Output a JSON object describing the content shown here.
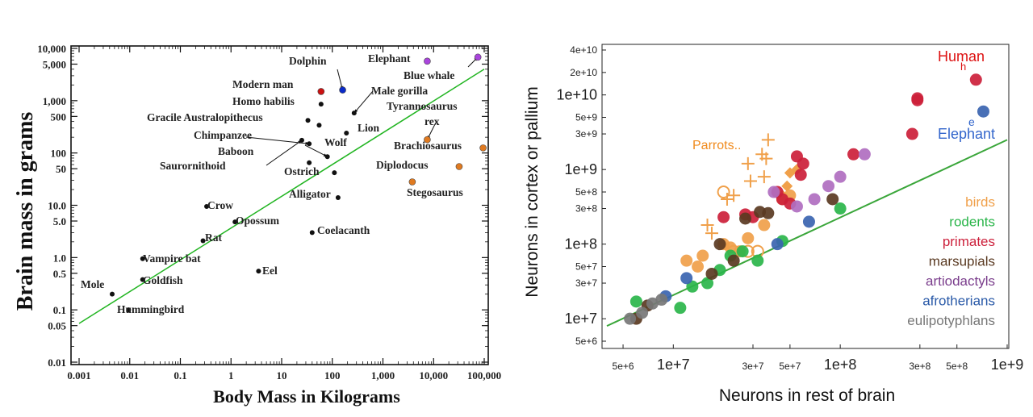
{
  "chart_data": [
    {
      "type": "scatter",
      "xlabel": "Body Mass in Kilograms",
      "ylabel": "Brain mass in grams",
      "x_scale": "log",
      "y_scale": "log",
      "xlim": [
        0.001,
        100000
      ],
      "ylim": [
        0.01,
        10000
      ],
      "x_ticks": [
        "0.001",
        "0.01",
        "0.1",
        "1",
        "10",
        "100",
        "1,000",
        "10,000",
        "100,000"
      ],
      "y_ticks": [
        "0.01",
        "0.05",
        "0.1",
        "0.5",
        "1.0",
        "5.0",
        "10.0",
        "50",
        "100",
        "500",
        "1,000",
        "5,000",
        "10,000"
      ],
      "grid": false,
      "trendline": {
        "x": [
          0.001,
          100000
        ],
        "y": [
          0.055,
          4000
        ],
        "color": "#22b522"
      },
      "points": [
        {
          "label": "Mole",
          "x": 0.0045,
          "y": 0.2,
          "color": "#111111"
        },
        {
          "label": "Hummingbird",
          "x": 0.0095,
          "y": 0.1,
          "color": "#111111"
        },
        {
          "label": "Goldfish",
          "x": 0.018,
          "y": 0.38,
          "color": "#111111"
        },
        {
          "label": "Vampire bat",
          "x": 0.018,
          "y": 0.95,
          "color": "#111111"
        },
        {
          "label": "Rat",
          "x": 0.28,
          "y": 2.1,
          "color": "#111111"
        },
        {
          "label": "Crow",
          "x": 0.33,
          "y": 9.5,
          "color": "#111111"
        },
        {
          "label": "Opossum",
          "x": 1.2,
          "y": 4.8,
          "color": "#111111"
        },
        {
          "label": "Eel",
          "x": 3.5,
          "y": 0.55,
          "color": "#111111"
        },
        {
          "label": "Coelacanth",
          "x": 40,
          "y": 3.0,
          "color": "#111111"
        },
        {
          "label": "Alligator",
          "x": 130,
          "y": 14,
          "color": "#111111"
        },
        {
          "label": "Ostrich",
          "x": 110,
          "y": 42,
          "color": "#111111"
        },
        {
          "label": "Saurornithoid",
          "x": 35,
          "y": 65,
          "color": "#111111"
        },
        {
          "label": "Wolf",
          "x": 80,
          "y": 85,
          "color": "#111111"
        },
        {
          "label": "Baboon",
          "x": 35,
          "y": 150,
          "color": "#111111"
        },
        {
          "label": "Chimpanzee",
          "x": 25,
          "y": 175,
          "color": "#111111"
        },
        {
          "label": "Gracile Australopithecus",
          "x": 33,
          "y": 420,
          "color": "#111111"
        },
        {
          "label": "Homo habilis",
          "x": 55,
          "y": 340,
          "color": "#111111"
        },
        {
          "label": "Homo habilis",
          "x": 60,
          "y": 860,
          "color": "#111111"
        },
        {
          "label": "Modern man",
          "x": 60,
          "y": 1500,
          "color": "#cc1111"
        },
        {
          "label": "Dolphin",
          "x": 160,
          "y": 1600,
          "color": "#0a2ac8"
        },
        {
          "label": "Male gorilla",
          "x": 270,
          "y": 580,
          "color": "#111111"
        },
        {
          "label": "Lion",
          "x": 190,
          "y": 240,
          "color": "#111111"
        },
        {
          "label": "Tyrannosaurus rex",
          "x": 7500,
          "y": 180,
          "color": "#e07a20"
        },
        {
          "label": "Brachiosaurus",
          "x": 95000,
          "y": 125,
          "color": "#e07a20"
        },
        {
          "label": "Diplodocus",
          "x": 32000,
          "y": 55,
          "color": "#e07a20"
        },
        {
          "label": "Stegosaurus",
          "x": 3800,
          "y": 28,
          "color": "#e07a20"
        },
        {
          "label": "Elephant",
          "x": 7500,
          "y": 5700,
          "color": "#aa44dd"
        },
        {
          "label": "Blue whale",
          "x": 75000,
          "y": 6800,
          "color": "#aa44dd"
        }
      ],
      "annotations": [
        "Mole",
        "Hummingbird",
        "Goldfish",
        "Vampire bat",
        "Rat",
        "Crow",
        "Opossum",
        "Eel",
        "Coelacanth",
        "Alligator",
        "Ostrich",
        "Saurornithoid",
        "Wolf",
        "Baboon",
        "Chimpanzee",
        "Gracile Australopithecus",
        "Homo habilis",
        "Modern man",
        "Dolphin",
        "Male gorilla",
        "Lion",
        "Tyrannosaurus",
        "rex",
        "Brachiosaurus",
        "Diplodocus",
        "Stegosaurus",
        "Elephant",
        "Blue whale"
      ]
    },
    {
      "type": "scatter",
      "xlabel": "Neurons in rest of brain",
      "ylabel": "Neurons in cortex or pallium",
      "x_scale": "log",
      "y_scale": "log",
      "xlim": [
        4000000,
        1000000000
      ],
      "ylim": [
        5000000,
        40000000000
      ],
      "x_ticks": [
        {
          "v": 5000000,
          "label": "5e+6",
          "major": false
        },
        {
          "v": 10000000,
          "label": "1e+7",
          "major": true
        },
        {
          "v": 30000000,
          "label": "3e+7",
          "major": false
        },
        {
          "v": 50000000,
          "label": "5e+7",
          "major": false
        },
        {
          "v": 100000000,
          "label": "1e+8",
          "major": true
        },
        {
          "v": 300000000,
          "label": "3e+8",
          "major": false
        },
        {
          "v": 500000000,
          "label": "5e+8",
          "major": false
        },
        {
          "v": 1000000000,
          "label": "1e+9",
          "major": true
        }
      ],
      "y_ticks": [
        {
          "v": 5000000,
          "label": "5e+6",
          "major": false
        },
        {
          "v": 10000000,
          "label": "1e+7",
          "major": true
        },
        {
          "v": 30000000,
          "label": "3e+7",
          "major": false
        },
        {
          "v": 50000000,
          "label": "5e+7",
          "major": false
        },
        {
          "v": 100000000,
          "label": "1e+8",
          "major": true
        },
        {
          "v": 300000000,
          "label": "3e+8",
          "major": false
        },
        {
          "v": 500000000,
          "label": "5e+8",
          "major": false
        },
        {
          "v": 1000000000,
          "label": "1e+9",
          "major": true
        },
        {
          "v": 3000000000,
          "label": "3e+9",
          "major": false
        },
        {
          "v": 5000000000,
          "label": "5e+9",
          "major": false
        },
        {
          "v": 10000000000,
          "label": "1e+10",
          "major": true
        },
        {
          "v": 20000000000,
          "label": "2e+10",
          "major": false
        },
        {
          "v": 40000000000,
          "label": "4e+10",
          "major": false
        }
      ],
      "grid": false,
      "trendline": {
        "x": [
          4000000,
          1000000000
        ],
        "y": [
          8000000,
          2500000000
        ],
        "color": "#3aa63a"
      },
      "annotations": [
        {
          "text": "Human",
          "color": "#dd1111"
        },
        {
          "text": "h",
          "color": "#dd1111"
        },
        {
          "text": "e",
          "color": "#3366cc"
        },
        {
          "text": "Elephant",
          "color": "#3366cc"
        },
        {
          "text": "Parrots..",
          "color": "#f08a1c"
        }
      ],
      "legend": {
        "position": "right",
        "entries": [
          {
            "label": "birds",
            "color": "#f0a04a"
          },
          {
            "label": "rodents",
            "color": "#2ab54a"
          },
          {
            "label": "primates",
            "color": "#cc1f3a"
          },
          {
            "label": "marsupials",
            "color": "#5a3a22"
          },
          {
            "label": "artiodactyls",
            "color": "#7a3d8c"
          },
          {
            "label": "afrotherians",
            "color": "#2a5aa8"
          },
          {
            "label": "eulipotyphlans",
            "color": "#777777"
          }
        ]
      },
      "series": [
        {
          "name": "birds",
          "color": "#f0a04a",
          "marker": "circle",
          "points": [
            [
              12000000,
              60000000
            ],
            [
              15000000,
              70000000
            ],
            [
              20000000,
              100000000
            ],
            [
              22000000,
              90000000
            ],
            [
              25000000,
              80000000
            ],
            [
              28000000,
              120000000
            ],
            [
              35000000,
              180000000
            ],
            [
              45000000,
              400000000
            ],
            [
              50000000,
              450000000
            ],
            [
              14000000,
              50000000
            ]
          ]
        },
        {
          "name": "birds",
          "color": "#f0a04a",
          "marker": "diamond",
          "points": [
            [
              45000000,
              450000000
            ],
            [
              50000000,
              900000000
            ],
            [
              48000000,
              600000000
            ],
            [
              55000000,
              1000000000
            ]
          ]
        },
        {
          "name": "birds",
          "color": "#f0a04a",
          "marker": "plus",
          "points": [
            [
              16000000,
              180000000
            ],
            [
              17000000,
              140000000
            ],
            [
              21000000,
              400000000
            ],
            [
              23000000,
              450000000
            ],
            [
              28000000,
              1200000000
            ],
            [
              29000000,
              700000000
            ],
            [
              34000000,
              1600000000
            ],
            [
              37000000,
              2500000000
            ],
            [
              36000000,
              1400000000
            ],
            [
              35000000,
              800000000
            ]
          ]
        },
        {
          "name": "birds",
          "color": "#f0a04a",
          "marker": "ring",
          "points": [
            [
              20000000,
              500000000
            ],
            [
              23000000,
              80000000
            ],
            [
              28000000,
              80000000
            ],
            [
              32000000,
              80000000
            ]
          ]
        },
        {
          "name": "rodents",
          "color": "#2ab54a",
          "marker": "circle",
          "points": [
            [
              6000000,
              17000000
            ],
            [
              11000000,
              14000000
            ],
            [
              13000000,
              27000000
            ],
            [
              16000000,
              30000000
            ],
            [
              19000000,
              45000000
            ],
            [
              22000000,
              70000000
            ],
            [
              26000000,
              80000000
            ],
            [
              32000000,
              60000000
            ],
            [
              45000000,
              110000000
            ],
            [
              100000000,
              300000000
            ]
          ]
        },
        {
          "name": "primates",
          "color": "#cc1f3a",
          "marker": "circle",
          "points": [
            [
              20000000,
              230000000
            ],
            [
              27000000,
              250000000
            ],
            [
              30000000,
              230000000
            ],
            [
              42000000,
              500000000
            ],
            [
              45000000,
              400000000
            ],
            [
              50000000,
              350000000
            ],
            [
              55000000,
              1500000000
            ],
            [
              60000000,
              1200000000
            ],
            [
              58000000,
              850000000
            ],
            [
              120000000,
              1600000000
            ],
            [
              270000000,
              3000000000
            ],
            [
              290000000,
              8500000000
            ],
            [
              290000000,
              9000000000
            ],
            [
              650000000,
              16000000000
            ]
          ]
        },
        {
          "name": "marsupials",
          "color": "#5a3a22",
          "marker": "circle",
          "points": [
            [
              6000000,
              10000000
            ],
            [
              7000000,
              15000000
            ],
            [
              19000000,
              100000000
            ],
            [
              27000000,
              220000000
            ],
            [
              33000000,
              270000000
            ],
            [
              37000000,
              260000000
            ],
            [
              90000000,
              400000000
            ],
            [
              17000000,
              40000000
            ],
            [
              23000000,
              60000000
            ]
          ]
        },
        {
          "name": "artiodactyls",
          "color": "#b06ec0",
          "marker": "circle",
          "points": [
            [
              55000000,
              320000000
            ],
            [
              70000000,
              400000000
            ],
            [
              85000000,
              600000000
            ],
            [
              100000000,
              800000000
            ],
            [
              140000000,
              1600000000
            ],
            [
              40000000,
              500000000
            ]
          ]
        },
        {
          "name": "afrotherians",
          "color": "#3a64b0",
          "marker": "circle",
          "points": [
            [
              9000000,
              20000000
            ],
            [
              12000000,
              35000000
            ],
            [
              42000000,
              100000000
            ],
            [
              65000000,
              200000000
            ],
            [
              720000000,
              6000000000
            ]
          ]
        },
        {
          "name": "eulipotyphlans",
          "color": "#777777",
          "marker": "circle",
          "points": [
            [
              5500000,
              10000000
            ],
            [
              6500000,
              12000000
            ],
            [
              7500000,
              16000000
            ],
            [
              8500000,
              18000000
            ]
          ]
        }
      ]
    }
  ]
}
